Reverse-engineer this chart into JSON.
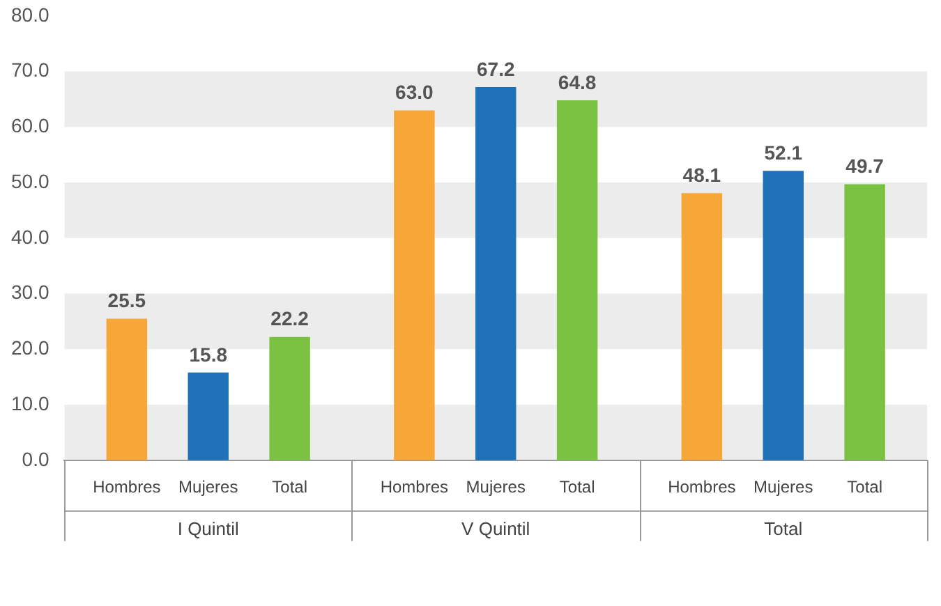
{
  "chart_data": {
    "type": "bar",
    "categories": [
      "I Quintil",
      "V Quintil",
      "Total"
    ],
    "series": [
      {
        "name": "Hombres",
        "color": "#f7a738",
        "values": [
          25.5,
          63.0,
          48.1
        ],
        "value_labels": [
          "25.5",
          "63.0",
          "48.1"
        ]
      },
      {
        "name": "Mujeres",
        "color": "#1f72b8",
        "values": [
          15.8,
          67.2,
          52.1
        ],
        "value_labels": [
          "15.8",
          "67.2",
          "52.1"
        ]
      },
      {
        "name": "Total",
        "color": "#7cc242",
        "values": [
          22.2,
          64.8,
          49.7
        ],
        "value_labels": [
          "22.2",
          "64.8",
          "49.7"
        ]
      }
    ],
    "ylim": [
      0,
      80
    ],
    "yticks": [
      {
        "value": 0,
        "label": "0.0"
      },
      {
        "value": 10,
        "label": "10.0"
      },
      {
        "value": 20,
        "label": "20.0"
      },
      {
        "value": 30,
        "label": "30.0"
      },
      {
        "value": 40,
        "label": "40.0"
      },
      {
        "value": 50,
        "label": "50.0"
      },
      {
        "value": 60,
        "label": "60.0"
      },
      {
        "value": 70,
        "label": "70.0"
      },
      {
        "value": 80,
        "label": "80.0"
      }
    ],
    "bands": [
      {
        "axis": "y",
        "from": 0,
        "to": 10,
        "color": "#ececec"
      },
      {
        "axis": "y",
        "from": 20,
        "to": 30,
        "color": "#ececec"
      },
      {
        "axis": "y",
        "from": 40,
        "to": 50,
        "color": "#ececec"
      },
      {
        "axis": "y",
        "from": 60,
        "to": 70,
        "color": "#ececec"
      }
    ],
    "legend": false
  }
}
